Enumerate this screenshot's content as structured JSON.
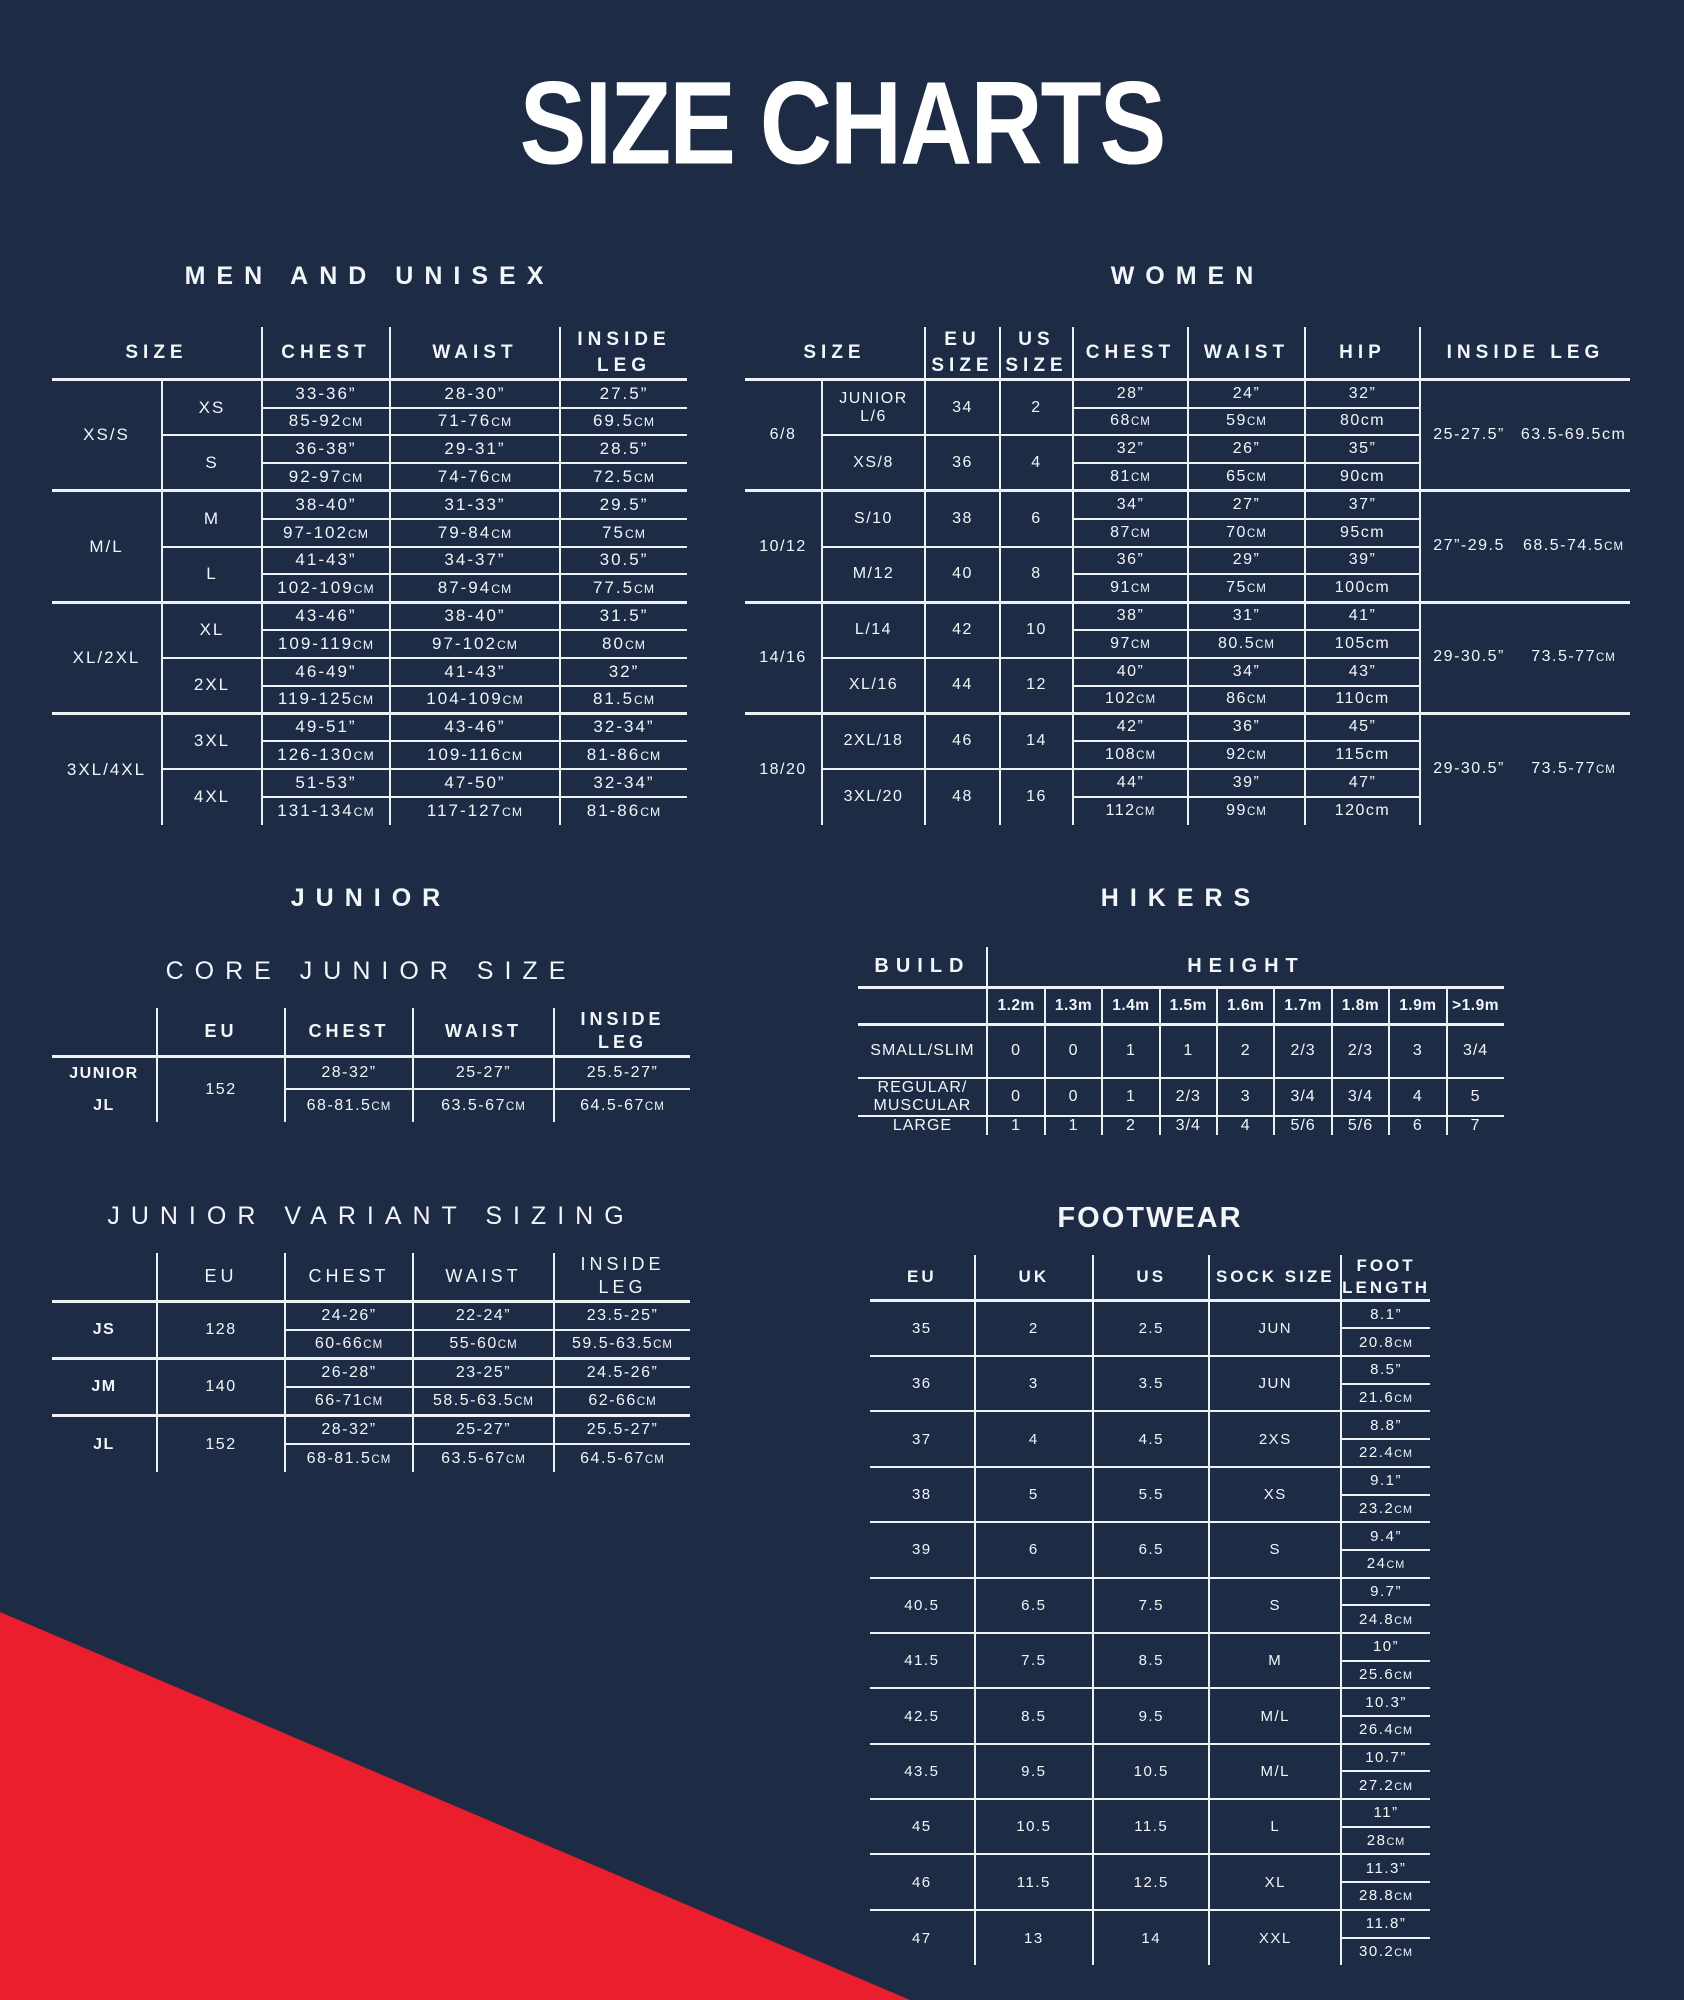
{
  "title": "SIZE CHARTS",
  "colors": {
    "background": "#1d2b45",
    "accent_red": "#ea1e2c",
    "line": "#eef2f6",
    "text": "#f3f6f9"
  },
  "sections": {
    "men": {
      "heading": "MEN AND UNISEX",
      "columns": [
        "SIZE",
        "CHEST",
        "WAIST",
        "INSIDE\nLEG"
      ],
      "groups": [
        {
          "label": "XS/S",
          "sizes": [
            {
              "label": "XS",
              "chest_in": "33-36”",
              "chest_cm": "85-92CM",
              "waist_in": "28-30”",
              "waist_cm": "71-76CM",
              "leg_in": "27.5”",
              "leg_cm": "69.5CM"
            },
            {
              "label": "S",
              "chest_in": "36-38”",
              "chest_cm": "92-97CM",
              "waist_in": "29-31”",
              "waist_cm": "74-76CM",
              "leg_in": "28.5”",
              "leg_cm": "72.5CM"
            }
          ]
        },
        {
          "label": "M/L",
          "sizes": [
            {
              "label": "M",
              "chest_in": "38-40”",
              "chest_cm": "97-102CM",
              "waist_in": "31-33”",
              "waist_cm": "79-84CM",
              "leg_in": "29.5”",
              "leg_cm": "75CM"
            },
            {
              "label": "L",
              "chest_in": "41-43”",
              "chest_cm": "102-109CM",
              "waist_in": "34-37”",
              "waist_cm": "87-94CM",
              "leg_in": "30.5”",
              "leg_cm": "77.5CM"
            }
          ]
        },
        {
          "label": "XL/2XL",
          "sizes": [
            {
              "label": "XL",
              "chest_in": "43-46”",
              "chest_cm": "109-119CM",
              "waist_in": "38-40”",
              "waist_cm": "97-102CM",
              "leg_in": "31.5”",
              "leg_cm": "80CM"
            },
            {
              "label": "2XL",
              "chest_in": "46-49”",
              "chest_cm": "119-125CM",
              "waist_in": "41-43”",
              "waist_cm": "104-109CM",
              "leg_in": "32”",
              "leg_cm": "81.5CM"
            }
          ]
        },
        {
          "label": "3XL/4XL",
          "sizes": [
            {
              "label": "3XL",
              "chest_in": "49-51”",
              "chest_cm": "126-130CM",
              "waist_in": "43-46”",
              "waist_cm": "109-116CM",
              "leg_in": "32-34”",
              "leg_cm": "81-86CM"
            },
            {
              "label": "4XL",
              "chest_in": "51-53”",
              "chest_cm": "131-134CM",
              "waist_in": "47-50”",
              "waist_cm": "117-127CM",
              "leg_in": "32-34”",
              "leg_cm": "81-86CM"
            }
          ]
        }
      ]
    },
    "women": {
      "heading": "WOMEN",
      "columns": [
        "SIZE",
        "EU\nSIZE",
        "US\nSIZE",
        "CHEST",
        "WAIST",
        "HIP",
        "INSIDE LEG"
      ],
      "groups": [
        {
          "label": "6/8",
          "leg_in": "25-27.5”",
          "leg_cm": "63.5-69.5cm",
          "sizes": [
            {
              "label": "JUNIOR L/6",
              "eu": "34",
              "us": "2",
              "chest_in": "28”",
              "chest_cm": "68CM",
              "waist_in": "24”",
              "waist_cm": "59CM",
              "hip_in": "32”",
              "hip_cm": "80cm"
            },
            {
              "label": "XS/8",
              "eu": "36",
              "us": "4",
              "chest_in": "32”",
              "chest_cm": "81CM",
              "waist_in": "26”",
              "waist_cm": "65CM",
              "hip_in": "35”",
              "hip_cm": "90cm"
            }
          ]
        },
        {
          "label": "10/12",
          "leg_in": "27”-29.5",
          "leg_cm": "68.5-74.5CM",
          "sizes": [
            {
              "label": "S/10",
              "eu": "38",
              "us": "6",
              "chest_in": "34”",
              "chest_cm": "87CM",
              "waist_in": "27”",
              "waist_cm": "70CM",
              "hip_in": "37”",
              "hip_cm": "95cm"
            },
            {
              "label": "M/12",
              "eu": "40",
              "us": "8",
              "chest_in": "36”",
              "chest_cm": "91CM",
              "waist_in": "29”",
              "waist_cm": "75CM",
              "hip_in": "39”",
              "hip_cm": "100cm"
            }
          ]
        },
        {
          "label": "14/16",
          "leg_in": "29-30.5”",
          "leg_cm": "73.5-77CM",
          "sizes": [
            {
              "label": "L/14",
              "eu": "42",
              "us": "10",
              "chest_in": "38”",
              "chest_cm": "97CM",
              "waist_in": "31”",
              "waist_cm": "80.5CM",
              "hip_in": "41”",
              "hip_cm": "105cm"
            },
            {
              "label": "XL/16",
              "eu": "44",
              "us": "12",
              "chest_in": "40”",
              "chest_cm": "102CM",
              "waist_in": "34”",
              "waist_cm": "86CM",
              "hip_in": "43”",
              "hip_cm": "110cm"
            }
          ]
        },
        {
          "label": "18/20",
          "leg_in": "29-30.5”",
          "leg_cm": "73.5-77CM",
          "sizes": [
            {
              "label": "2XL/18",
              "eu": "46",
              "us": "14",
              "chest_in": "42”",
              "chest_cm": "108CM",
              "waist_in": "36”",
              "waist_cm": "92CM",
              "hip_in": "45”",
              "hip_cm": "115cm"
            },
            {
              "label": "3XL/20",
              "eu": "48",
              "us": "16",
              "chest_in": "44”",
              "chest_cm": "112CM",
              "waist_in": "39”",
              "waist_cm": "99CM",
              "hip_in": "47”",
              "hip_cm": "120cm"
            }
          ]
        }
      ]
    },
    "junior": {
      "heading": "JUNIOR",
      "core": {
        "title": "CORE JUNIOR SIZE",
        "columns": [
          "",
          "EU",
          "CHEST",
          "WAIST",
          "INSIDE\nLEG"
        ],
        "row_labels": [
          "JUNIOR",
          "JL"
        ],
        "eu": "152",
        "chest_in": "28-32”",
        "chest_cm": "68-81.5CM",
        "waist_in": "25-27”",
        "waist_cm": "63.5-67CM",
        "leg_in": "25.5-27”",
        "leg_cm": "64.5-67CM"
      },
      "variant": {
        "title": "JUNIOR VARIANT SIZING",
        "columns": [
          "",
          "EU",
          "CHEST",
          "WAIST",
          "INSIDE LEG"
        ],
        "groups": [
          {
            "label": "JS",
            "eu": "128",
            "chest_in": "24-26”",
            "chest_cm": "60-66CM",
            "waist_in": "22-24”",
            "waist_cm": "55-60CM",
            "leg_in": "23.5-25”",
            "leg_cm": "59.5-63.5CM"
          },
          {
            "label": "JM",
            "eu": "140",
            "chest_in": "26-28”",
            "chest_cm": "66-71CM",
            "waist_in": "23-25”",
            "waist_cm": "58.5-63.5CM",
            "leg_in": "24.5-26”",
            "leg_cm": "62-66CM"
          },
          {
            "label": "JL",
            "eu": "152",
            "chest_in": "28-32”",
            "chest_cm": "68-81.5CM",
            "waist_in": "25-27”",
            "waist_cm": "63.5-67CM",
            "leg_in": "25.5-27”",
            "leg_cm": "64.5-67CM"
          }
        ]
      }
    },
    "hikers": {
      "heading": "HIKERS",
      "build_label": "BUILD",
      "height_label": "HEIGHT",
      "height_columns": [
        "1.2m",
        "1.3m",
        "1.4m",
        "1.5m",
        "1.6m",
        "1.7m",
        "1.8m",
        "1.9m",
        ">1.9m"
      ],
      "rows": [
        {
          "label": "SMALL/SLIM",
          "values": [
            "0",
            "0",
            "1",
            "1",
            "2",
            "2/3",
            "2/3",
            "3",
            "3/4"
          ]
        },
        {
          "label": "REGULAR/\nMUSCULAR",
          "values": [
            "0",
            "0",
            "1",
            "2/3",
            "3",
            "3/4",
            "3/4",
            "4",
            "5"
          ]
        },
        {
          "label": "LARGE",
          "values": [
            "1",
            "1",
            "2",
            "3/4",
            "4",
            "5/6",
            "5/6",
            "6",
            "7"
          ]
        }
      ]
    },
    "footwear": {
      "heading": "FOOTWEAR",
      "columns": [
        "EU",
        "UK",
        "US",
        "SOCK SIZE",
        "FOOT\nLENGTH"
      ],
      "rows": [
        {
          "eu": "35",
          "uk": "2",
          "us": "2.5",
          "sock": "JUN",
          "length_in": "8.1”",
          "length_cm": "20.8CM"
        },
        {
          "eu": "36",
          "uk": "3",
          "us": "3.5",
          "sock": "JUN",
          "length_in": "8.5”",
          "length_cm": "21.6CM"
        },
        {
          "eu": "37",
          "uk": "4",
          "us": "4.5",
          "sock": "2XS",
          "length_in": "8.8”",
          "length_cm": "22.4CM"
        },
        {
          "eu": "38",
          "uk": "5",
          "us": "5.5",
          "sock": "XS",
          "length_in": "9.1”",
          "length_cm": "23.2CM"
        },
        {
          "eu": "39",
          "uk": "6",
          "us": "6.5",
          "sock": "S",
          "length_in": "9.4”",
          "length_cm": "24CM"
        },
        {
          "eu": "40.5",
          "uk": "6.5",
          "us": "7.5",
          "sock": "S",
          "length_in": "9.7”",
          "length_cm": "24.8CM"
        },
        {
          "eu": "41.5",
          "uk": "7.5",
          "us": "8.5",
          "sock": "M",
          "length_in": "10”",
          "length_cm": "25.6CM"
        },
        {
          "eu": "42.5",
          "uk": "8.5",
          "us": "9.5",
          "sock": "M/L",
          "length_in": "10.3”",
          "length_cm": "26.4CM"
        },
        {
          "eu": "43.5",
          "uk": "9.5",
          "us": "10.5",
          "sock": "M/L",
          "length_in": "10.7”",
          "length_cm": "27.2CM"
        },
        {
          "eu": "45",
          "uk": "10.5",
          "us": "11.5",
          "sock": "L",
          "length_in": "11”",
          "length_cm": "28CM"
        },
        {
          "eu": "46",
          "uk": "11.5",
          "us": "12.5",
          "sock": "XL",
          "length_in": "11.3”",
          "length_cm": "28.8CM"
        },
        {
          "eu": "47",
          "uk": "13",
          "us": "14",
          "sock": "XXL",
          "length_in": "11.8”",
          "length_cm": "30.2CM"
        }
      ]
    }
  }
}
